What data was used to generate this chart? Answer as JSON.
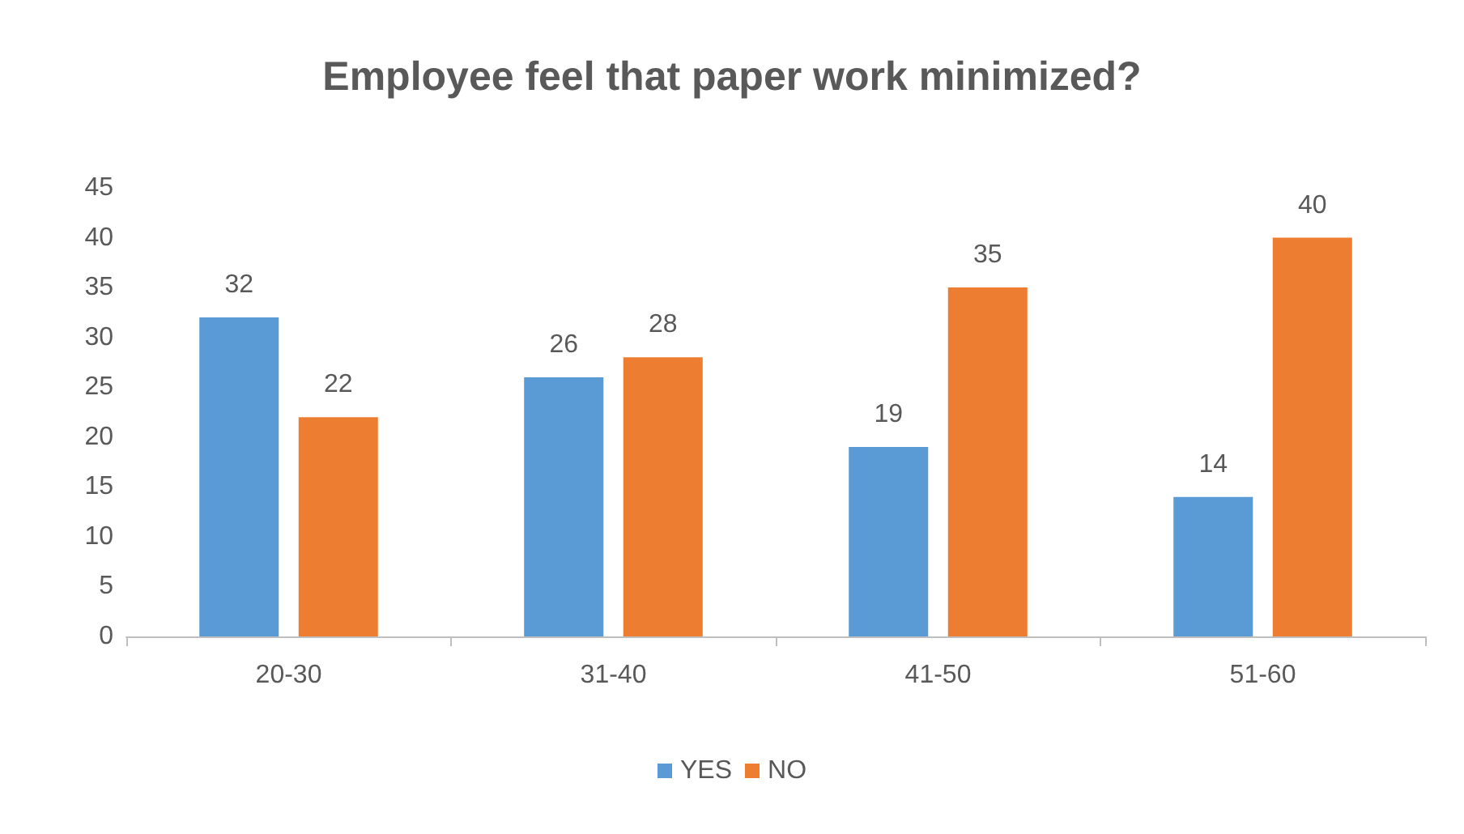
{
  "chart_data": {
    "type": "bar",
    "title": "Employee feel that paper work minimized?",
    "categories": [
      "20-30",
      "31-40",
      "41-50",
      "51-60"
    ],
    "series": [
      {
        "name": "YES",
        "color": "#5b9bd5",
        "values": [
          32,
          26,
          19,
          14
        ]
      },
      {
        "name": "NO",
        "color": "#ed7d31",
        "values": [
          22,
          28,
          35,
          40
        ]
      }
    ],
    "ylim": [
      0,
      45
    ],
    "yticks": [
      0,
      5,
      10,
      15,
      20,
      25,
      30,
      35,
      40,
      45
    ],
    "grid": false,
    "legend": "bottom",
    "data_labels": true
  }
}
